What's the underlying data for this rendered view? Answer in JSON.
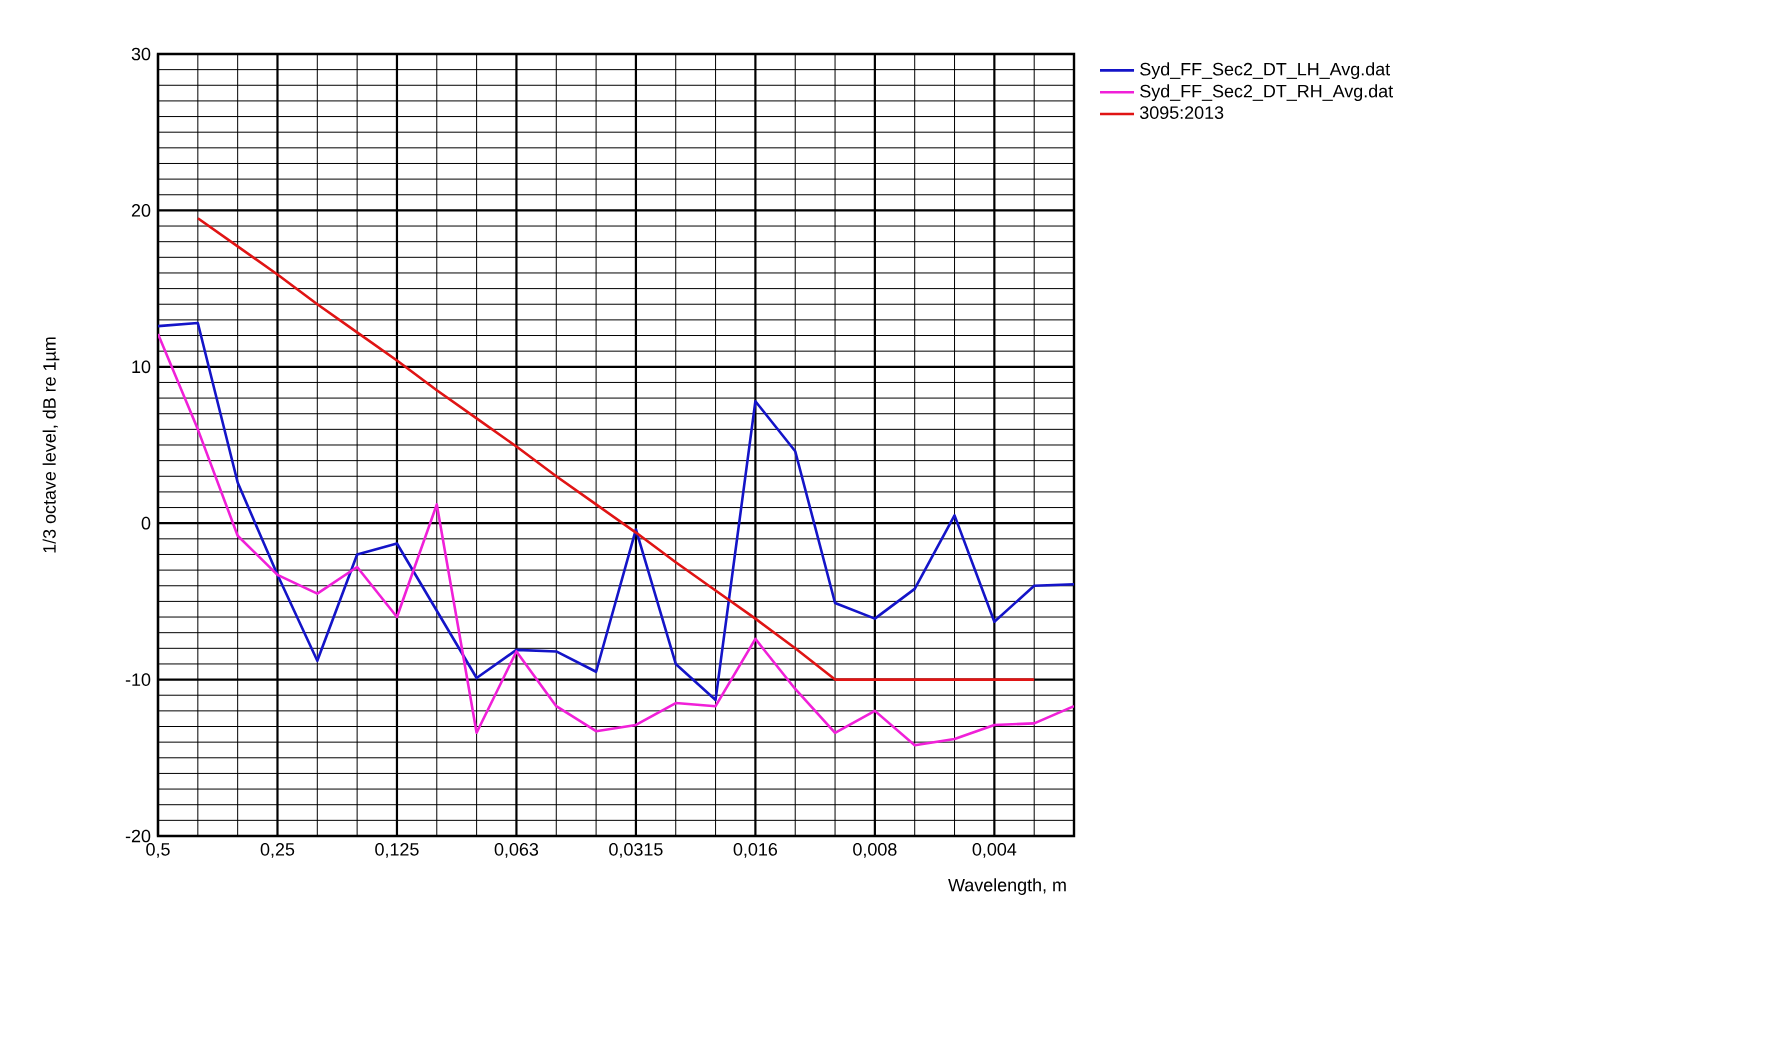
{
  "chart_data": {
    "type": "line",
    "xlabel": "Wavelength, m",
    "ylabel": "1/3 octave level, dB re 1µm",
    "categories": [
      "0,5",
      null,
      null,
      "0,25",
      null,
      null,
      "0,125",
      null,
      null,
      "0,063",
      null,
      null,
      "0,0315",
      null,
      null,
      "0,016",
      null,
      null,
      "0,008",
      null,
      null,
      "0,004",
      null,
      null
    ],
    "ylim": [
      -20,
      30
    ],
    "yticks": [
      -20,
      -10,
      0,
      10,
      20,
      30
    ],
    "grid": true,
    "legend": "top right",
    "line_style": "solid",
    "marker": "none",
    "series": [
      {
        "name": "Syd_FF_Sec2_DT_LH_Avg.dat",
        "color": "#1414c8",
        "values": [
          12.6,
          12.8,
          2.6,
          -3.3,
          -8.8,
          -2,
          -1.3,
          -5.6,
          -9.9,
          -8.1,
          -8.2,
          -9.5,
          -0.4,
          -9,
          -11.3,
          7.8,
          4.6,
          -5.1,
          -6.1,
          -4.2,
          0.5,
          -6.3,
          -4,
          -3.9
        ]
      },
      {
        "name": "Syd_FF_Sec2_DT_RH_Avg.dat",
        "color": "#f020d8",
        "values": [
          12.1,
          6,
          -0.8,
          -3.3,
          -4.5,
          -2.8,
          -6,
          1.2,
          -13.4,
          -8.2,
          -11.7,
          -13.3,
          -12.9,
          -11.5,
          -11.7,
          -7.4,
          -10.6,
          -13.4,
          -12,
          -14.2,
          -13.8,
          -12.9,
          -12.8,
          -11.7
        ]
      },
      {
        "name": "3095:2013",
        "color": "#e01414",
        "values": [
          null,
          19.5,
          17.7,
          15.9,
          14.0,
          12.2,
          10.4,
          8.5,
          6.7,
          4.9,
          3.0,
          1.2,
          -0.6,
          -2.5,
          -4.3,
          -6.1,
          -8.0,
          -10,
          -10,
          -10,
          -10,
          -10,
          -10,
          null
        ]
      }
    ]
  }
}
